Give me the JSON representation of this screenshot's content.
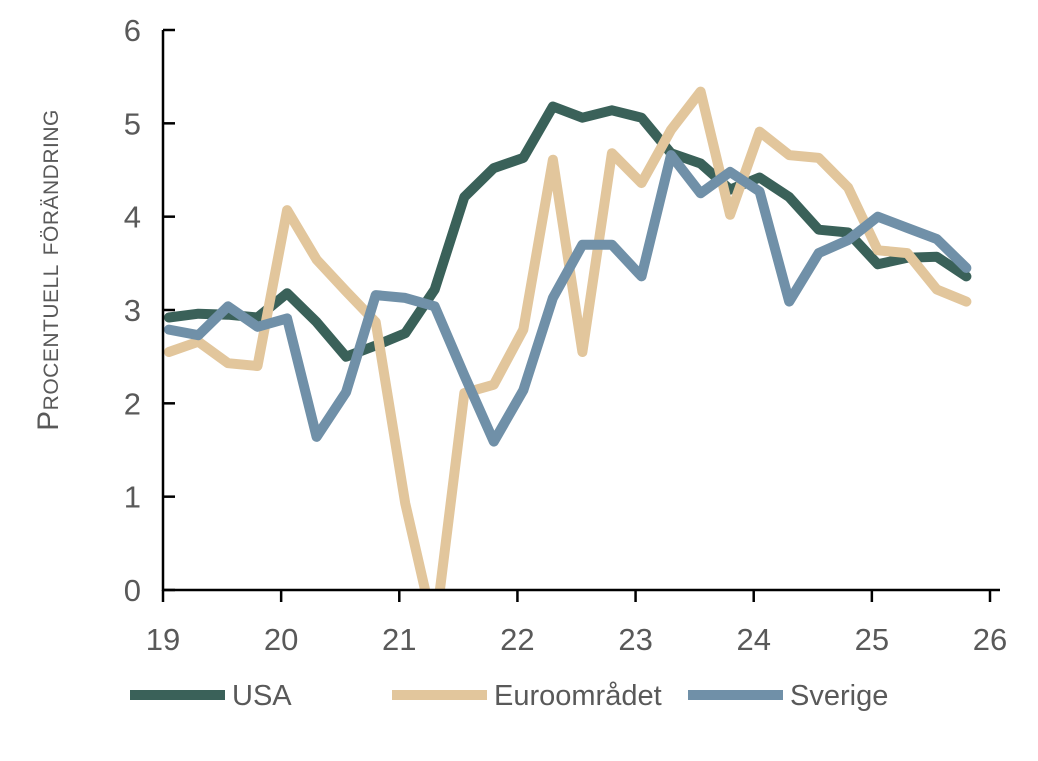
{
  "chart_data": {
    "type": "line",
    "title": "",
    "xlabel": "",
    "ylabel": "Procentuell förändring",
    "xlim": [
      19,
      26
    ],
    "ylim": [
      0,
      6
    ],
    "xticks": [
      "19",
      "20",
      "21",
      "22",
      "23",
      "24",
      "25",
      "26"
    ],
    "yticks": [
      "0",
      "1",
      "2",
      "3",
      "4",
      "5",
      "6"
    ],
    "grid": false,
    "legend_position": "bottom",
    "x": [
      19.05,
      19.3,
      19.55,
      19.8,
      20.05,
      20.3,
      20.55,
      20.8,
      21.05,
      21.3,
      21.55,
      21.8,
      22.05,
      22.3,
      22.55,
      22.8,
      23.05,
      23.3,
      23.55,
      23.8,
      24.05,
      24.3,
      24.55,
      24.8,
      25.05,
      25.3,
      25.55,
      25.8
    ],
    "series": [
      {
        "name": "USA",
        "color": "#3a6159",
        "values": [
          2.92,
          2.96,
          2.95,
          2.92,
          3.18,
          2.87,
          2.5,
          2.62,
          2.75,
          3.22,
          4.21,
          4.52,
          4.63,
          5.18,
          5.06,
          5.14,
          5.06,
          4.68,
          4.57,
          4.29,
          4.42,
          4.21,
          3.86,
          3.83,
          3.49,
          3.56,
          3.57,
          3.36
        ]
      },
      {
        "name": "Euroområdet",
        "color": "#e2c69c",
        "values": [
          2.55,
          2.66,
          2.43,
          2.4,
          4.07,
          3.54,
          3.2,
          2.87,
          0.93,
          -0.45,
          2.11,
          2.2,
          2.79,
          4.61,
          2.55,
          4.68,
          4.36,
          4.93,
          5.34,
          4.02,
          4.91,
          4.66,
          4.63,
          4.31,
          3.64,
          3.61,
          3.22,
          3.09
        ]
      },
      {
        "name": "Sverige",
        "color": "#7090a8",
        "values": [
          2.79,
          2.73,
          3.04,
          2.82,
          2.91,
          1.64,
          2.12,
          3.16,
          3.13,
          3.04,
          2.3,
          1.59,
          2.14,
          3.13,
          3.7,
          3.7,
          3.36,
          4.66,
          4.25,
          4.48,
          4.27,
          3.09,
          3.61,
          3.75,
          4.0,
          3.88,
          3.76,
          3.45
        ]
      }
    ]
  }
}
